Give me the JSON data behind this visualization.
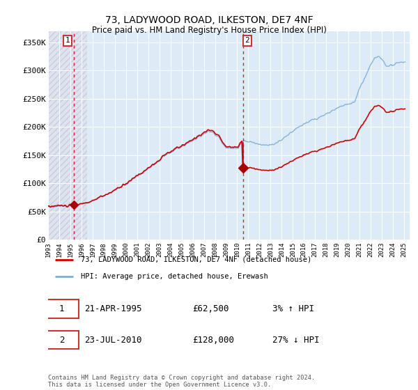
{
  "title": "73, LADYWOOD ROAD, ILKESTON, DE7 4NF",
  "subtitle": "Price paid vs. HM Land Registry's House Price Index (HPI)",
  "sale1_price": 62500,
  "sale1_label": "1",
  "sale1_text": "21-APR-1995",
  "sale1_pct": "3% ↑ HPI",
  "sale2_price": 128000,
  "sale2_label": "2",
  "sale2_text": "23-JUL-2010",
  "sale2_pct": "27% ↓ HPI",
  "legend_line1": "73, LADYWOOD ROAD, ILKESTON, DE7 4NF (detached house)",
  "legend_line2": "HPI: Average price, detached house, Erewash",
  "footer": "Contains HM Land Registry data © Crown copyright and database right 2024.\nThis data is licensed under the Open Government Licence v3.0.",
  "hpi_color": "#7aaed4",
  "price_color": "#cc0000",
  "vline_color": "#cc0000",
  "dot_color": "#aa0000",
  "ylim": [
    0,
    370000
  ],
  "yticks": [
    0,
    50000,
    100000,
    150000,
    200000,
    250000,
    300000,
    350000
  ],
  "ytick_labels": [
    "£0",
    "£50K",
    "£100K",
    "£150K",
    "£200K",
    "£250K",
    "£300K",
    "£350K"
  ],
  "xlim_start": 1993.0,
  "xlim_end": 2025.5,
  "sale1_x": 1995.29,
  "sale2_x": 2010.54
}
